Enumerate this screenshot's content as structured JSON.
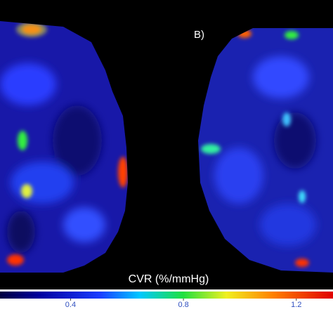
{
  "panel_label": "B)",
  "colorbar": {
    "label": "CVR (%/mmHg)",
    "lim": [
      0.15,
      1.33
    ],
    "ticks": [
      0.4,
      0.8,
      1.2
    ]
  }
}
